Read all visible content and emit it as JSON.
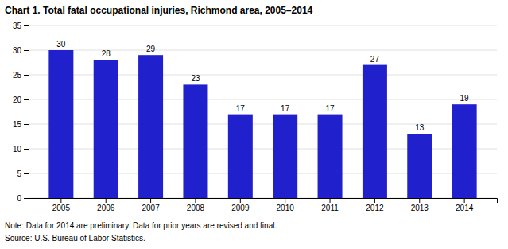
{
  "chart_data": {
    "type": "bar",
    "title": "Chart 1. Total fatal occupational injuries, Richmond area, 2005–2014",
    "categories": [
      "2005",
      "2006",
      "2007",
      "2008",
      "2009",
      "2010",
      "2011",
      "2012",
      "2013",
      "2014"
    ],
    "values": [
      30,
      28,
      29,
      23,
      17,
      17,
      17,
      27,
      13,
      19
    ],
    "color": "#2020cc",
    "ylim": [
      0,
      35
    ],
    "yticks": [
      0,
      5,
      10,
      15,
      20,
      25,
      30,
      35
    ],
    "grid": true,
    "data_labels": true,
    "annotations": [
      "Note: Data for 2014 are preliminary.  Data for prior years are revised and final.",
      "Source: U.S. Bureau of Labor Statistics."
    ]
  }
}
